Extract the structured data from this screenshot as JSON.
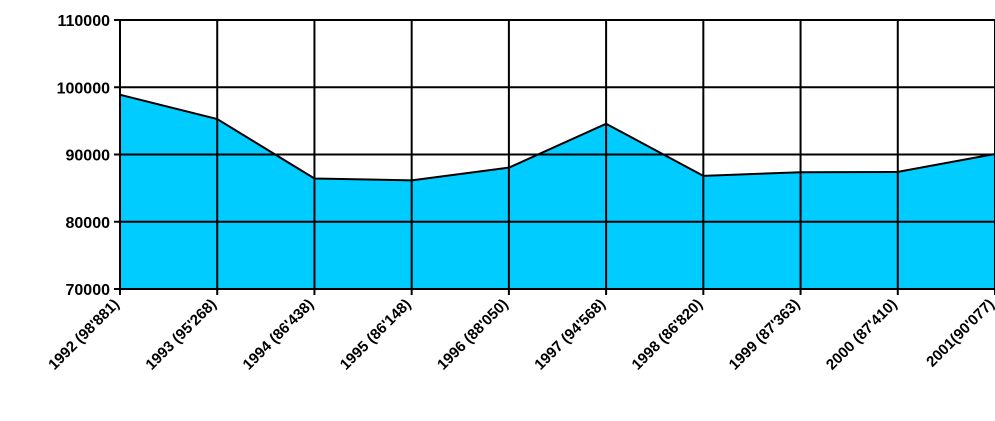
{
  "chart_data": {
    "type": "area",
    "categories": [
      "1992 (98'881)",
      "1993 (95'268)",
      "1994 (86'438)",
      "1995 (86'148)",
      "1996 (88'050)",
      "1997 (94'568)",
      "1998 (86'820)",
      "1999 (87'363)",
      "2000 (87'410)",
      "2001(90'077)"
    ],
    "values": [
      98881,
      95268,
      86438,
      86148,
      88050,
      94568,
      86820,
      87363,
      87410,
      90077
    ],
    "ylim": [
      70000,
      110000
    ],
    "yticks": [
      "70000",
      "80000",
      "90000",
      "100000",
      "110000"
    ],
    "ytick_values": [
      70000,
      80000,
      90000,
      100000,
      110000
    ],
    "grid": true,
    "legend": "none",
    "colors": {
      "fill": "#00ccff",
      "line": "#000000",
      "grid": "#000000"
    }
  }
}
